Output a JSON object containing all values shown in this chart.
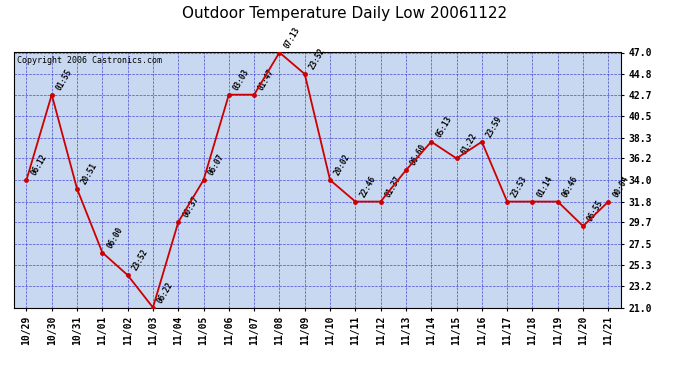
{
  "title": "Outdoor Temperature Daily Low 20061122",
  "copyright": "Copyright 2006 Castronics.com",
  "x_labels": [
    "10/29",
    "10/30",
    "10/31",
    "11/01",
    "11/02",
    "11/03",
    "11/04",
    "11/05",
    "11/06",
    "11/07",
    "11/08",
    "11/09",
    "11/10",
    "11/11",
    "11/12",
    "11/13",
    "11/14",
    "11/15",
    "11/16",
    "11/17",
    "11/18",
    "11/19",
    "11/20",
    "11/21"
  ],
  "y_values": [
    34.0,
    42.7,
    33.1,
    26.6,
    24.3,
    21.0,
    29.7,
    34.0,
    42.7,
    42.7,
    47.0,
    44.8,
    34.0,
    31.8,
    31.8,
    35.0,
    37.9,
    36.2,
    37.9,
    31.8,
    31.8,
    31.8,
    29.3,
    31.8
  ],
  "annotations": [
    "06:12",
    "01:55",
    "20:51",
    "06:00",
    "23:52",
    "06:22",
    "00:37",
    "06:07",
    "03:03",
    "01:47",
    "07:13",
    "23:52",
    "20:02",
    "22:46",
    "01:37",
    "06:60",
    "05:13",
    "61:22",
    "23:59",
    "23:53",
    "01:14",
    "06:46",
    "06:55",
    "00:04"
  ],
  "y_ticks": [
    21.0,
    23.2,
    25.3,
    27.5,
    29.7,
    31.8,
    34.0,
    36.2,
    38.3,
    40.5,
    42.7,
    44.8,
    47.0
  ],
  "y_min": 21.0,
  "y_max": 47.0,
  "line_color": "#CC0000",
  "marker_color": "#CC0000",
  "grid_color": "#3333CC",
  "bg_color": "#C8D8F0",
  "outer_bg": "#FFFFFF",
  "title_fontsize": 11,
  "copyright_fontsize": 6,
  "annotation_fontsize": 5.5,
  "tick_fontsize": 7
}
